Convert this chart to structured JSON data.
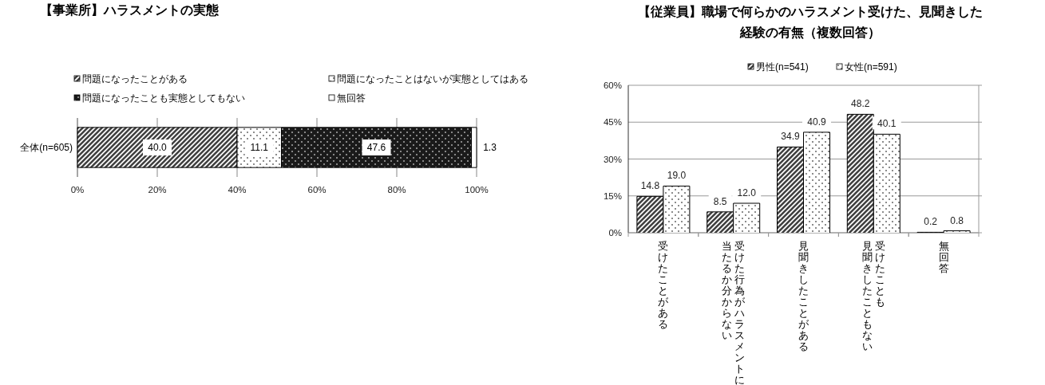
{
  "chart_data": [
    {
      "type": "bar",
      "orientation": "horizontal",
      "stacked": true,
      "title": "【事業所】ハラスメントの実態",
      "categories": [
        "全体(n=605)"
      ],
      "series": [
        {
          "name": "問題になったことがある",
          "color": "#404040",
          "values": [
            40.0
          ],
          "value_labels": [
            "40.0"
          ]
        },
        {
          "name": "問題になったことはないが実態としてはある",
          "color": "#ffffff",
          "values": [
            11.1
          ],
          "value_labels": [
            "11.1"
          ]
        },
        {
          "name": "問題になったことも実態としてもない",
          "color": "#1a1a1a",
          "values": [
            47.6
          ],
          "value_labels": [
            "47.6"
          ]
        },
        {
          "name": "無回答",
          "color": "#ffffff",
          "values": [
            1.3
          ],
          "value_labels": [
            "1.3"
          ]
        }
      ],
      "xlim": [
        0,
        100
      ],
      "xticks": [
        {
          "value": 0,
          "label": "0%"
        },
        {
          "value": 20,
          "label": "20%"
        },
        {
          "value": 40,
          "label": "40%"
        },
        {
          "value": 60,
          "label": "60%"
        },
        {
          "value": 80,
          "label": "80%"
        },
        {
          "value": 100,
          "label": "100%"
        }
      ],
      "grid": "x",
      "legend": "top"
    },
    {
      "type": "bar",
      "title": "【従業員】職場で何らかのハラスメント受けた、見聞きした経験の有無（複数回答）",
      "categories": [
        "受けたことがある",
        "受けた行為がハラスメントに当たるか分からない",
        "見聞きしたことがある",
        "受けたことも見聞きしたこともない",
        "無回答"
      ],
      "series": [
        {
          "name": "男性(n=541)",
          "color": "#404040",
          "values": [
            14.8,
            8.5,
            34.9,
            48.2,
            0.2
          ],
          "value_labels": [
            "14.8",
            "8.5",
            "34.9",
            "48.2",
            "0.2"
          ]
        },
        {
          "name": "女性(n=591)",
          "color": "#ffffff",
          "values": [
            19.0,
            12.0,
            40.9,
            40.1,
            0.8
          ],
          "value_labels": [
            "19.0",
            "12.0",
            "40.9",
            "40.1",
            "0.8"
          ]
        }
      ],
      "ylim": [
        0,
        60
      ],
      "yticks": [
        {
          "value": 0,
          "label": "0%"
        },
        {
          "value": 15,
          "label": "15%"
        },
        {
          "value": 30,
          "label": "30%"
        },
        {
          "value": 45,
          "label": "45%"
        },
        {
          "value": 60,
          "label": "60%"
        }
      ],
      "grid": "y",
      "legend": "top"
    }
  ]
}
